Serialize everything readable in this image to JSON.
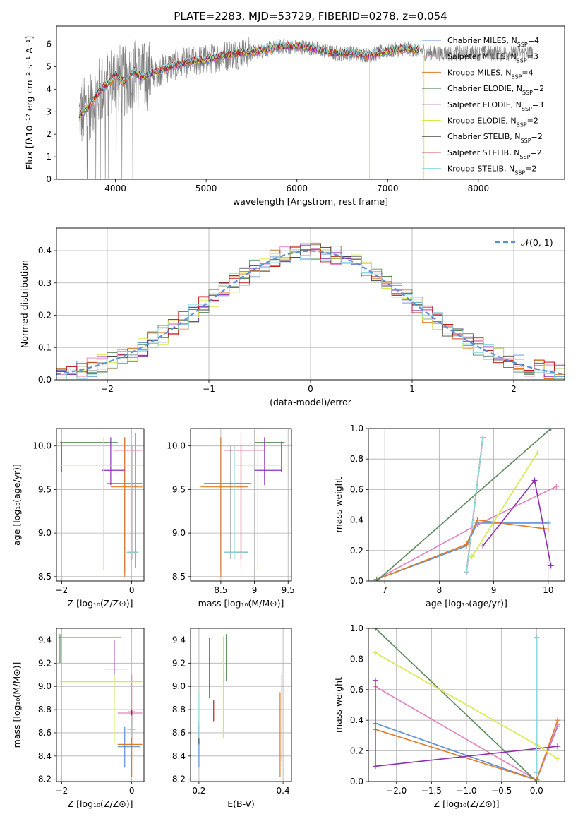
{
  "figure_title": "PLATE=2283, MJD=53729, FIBERID=0278, z=0.054",
  "colors": {
    "chabrier_miles": "#5b8fd6",
    "salpeter_miles": "#e57fbf",
    "kroupa_miles": "#e07b25",
    "chabrier_elodie": "#5a8a5e",
    "salpeter_elodie": "#8e2fb0",
    "kroupa_elodie": "#d6ea4a",
    "chabrier_stelib": "#4a4a4a",
    "salpeter_stelib": "#c41a1a",
    "kroupa_stelib": "#8fd8e0",
    "data": "#808080",
    "normal": "#5b8fd6",
    "grid": "#b0b0b0"
  },
  "legend": [
    {
      "label": "Chabrier MILES, N",
      "sub": "SSP",
      "n": "=4",
      "color": "#5b8fd6"
    },
    {
      "label": "Salpeter MILES, N",
      "sub": "SSP",
      "n": "=3",
      "color": "#e57fbf"
    },
    {
      "label": "Kroupa MILES, N",
      "sub": "SSP",
      "n": "=4",
      "color": "#e07b25"
    },
    {
      "label": "Chabrier ELODIE, N",
      "sub": "SSP",
      "n": "=2",
      "color": "#5a8a5e"
    },
    {
      "label": "Salpeter ELODIE, N",
      "sub": "SSP",
      "n": "=3",
      "color": "#8e2fb0"
    },
    {
      "label": "Kroupa ELODIE, N",
      "sub": "SSP",
      "n": "=2",
      "color": "#d6ea4a"
    },
    {
      "label": "Chabrier STELIB, N",
      "sub": "SSP",
      "n": "=2",
      "color": "#4a4a4a"
    },
    {
      "label": "Salpeter STELIB, N",
      "sub": "SSP",
      "n": "=2",
      "color": "#c41a1a"
    },
    {
      "label": "Kroupa STELIB, N",
      "sub": "SSP",
      "n": "=2",
      "color": "#8fd8e0"
    }
  ],
  "chart_data": [
    {
      "id": "spectrum",
      "type": "line",
      "xlabel": "wavelength [Angstrom, rest frame]",
      "ylabel": "Flux [fλ10⁻¹⁷ erg cm⁻² s⁻¹ A⁻¹]",
      "xlim": [
        3350,
        8950
      ],
      "ylim": [
        0,
        6.8
      ],
      "xticks": [
        4000,
        5000,
        6000,
        7000,
        8000
      ],
      "yticks": [
        0,
        1,
        2,
        3,
        4,
        5,
        6
      ],
      "continuum": {
        "x": [
          3600,
          3700,
          3800,
          3900,
          4000,
          4100,
          4200,
          4300,
          4400,
          4600,
          4800,
          5000,
          5200,
          5400,
          5600,
          5800,
          6000,
          6200,
          6400,
          6600,
          6800,
          7000,
          7200,
          7400
        ],
        "y": [
          2.8,
          3.2,
          3.8,
          4.2,
          4.6,
          4.3,
          4.8,
          4.5,
          4.7,
          5.0,
          5.2,
          5.3,
          5.5,
          5.6,
          5.7,
          5.9,
          5.9,
          5.8,
          5.6,
          5.6,
          5.5,
          5.7,
          5.8,
          5.7
        ]
      },
      "model_end": 7350,
      "data_range": [
        3600,
        8600
      ]
    },
    {
      "id": "residuals",
      "type": "histogram",
      "xlabel": "(data-model)/error",
      "ylabel": "Normed distribution",
      "xlim": [
        -2.5,
        2.5
      ],
      "ylim": [
        0,
        0.47
      ],
      "xticks": [
        -2,
        -1,
        0,
        1,
        2
      ],
      "yticks": [
        0.0,
        0.1,
        0.2,
        0.3,
        0.4
      ],
      "bin_edges_start": -2.5,
      "bin_width": 0.1,
      "nbins": 50,
      "normal_label": "𝒩(0, 1)"
    },
    {
      "id": "age_vs_Z",
      "type": "errorbar",
      "xlabel": "Z [log₁₀(Z/Z⊙)]",
      "ylabel": "age  [log₁₀(age/yr)]",
      "xlim": [
        -2.15,
        0.35
      ],
      "ylim": [
        8.45,
        10.2
      ],
      "xticks": [
        -2,
        0
      ],
      "yticks": [
        8.5,
        9.0,
        9.5,
        10.0
      ],
      "points": [
        {
          "m": "chabrier_miles",
          "x": -0.2,
          "xe": [
            -0.7,
            0.3
          ],
          "y": 9.57,
          "ye": [
            8.55,
            10.1
          ]
        },
        {
          "m": "salpeter_miles",
          "x": 0.1,
          "xe": [
            -0.5,
            0.3
          ],
          "y": 9.95,
          "ye": [
            8.6,
            10.15
          ]
        },
        {
          "m": "kroupa_miles",
          "x": -0.2,
          "xe": [
            -0.6,
            0.3
          ],
          "y": 9.53,
          "ye": [
            8.5,
            10.1
          ]
        },
        {
          "m": "chabrier_elodie",
          "x": -2.0,
          "xe": [
            -2.05,
            -0.4
          ],
          "y": 10.04,
          "ye": [
            9.7,
            10.05
          ]
        },
        {
          "m": "salpeter_elodie",
          "x": -0.6,
          "xe": [
            -0.85,
            -0.2
          ],
          "y": 9.72,
          "ye": [
            9.55,
            10.1
          ]
        },
        {
          "m": "kroupa_elodie",
          "x": -0.8,
          "xe": [
            -2.05,
            0.4
          ],
          "y": 9.78,
          "ye": [
            8.58,
            10.1
          ]
        },
        {
          "m": "chabrier_stelib",
          "x": 0.0,
          "xe": [
            -0.1,
            0.15
          ],
          "y": 8.78,
          "ye": [
            8.7,
            10.0
          ]
        },
        {
          "m": "salpeter_stelib",
          "x": 0.0,
          "xe": [
            -0.1,
            0.15
          ],
          "y": 8.78,
          "ye": [
            8.7,
            10.0
          ]
        },
        {
          "m": "kroupa_stelib",
          "x": 0.0,
          "xe": [
            -0.15,
            0.2
          ],
          "y": 8.78,
          "ye": [
            8.7,
            10.0
          ]
        }
      ]
    },
    {
      "id": "age_vs_mass",
      "type": "errorbar",
      "xlabel": "mass [log₁₀(M/M⊙)]",
      "ylabel": "",
      "xlim": [
        8.05,
        9.55
      ],
      "ylim": [
        8.45,
        10.2
      ],
      "xticks": [
        8.5,
        9.0,
        9.5
      ],
      "yticks": [
        8.5,
        9.0,
        9.5,
        10.0
      ],
      "points": [
        {
          "m": "chabrier_miles",
          "x": 8.5,
          "xe": [
            8.25,
            8.95
          ],
          "y": 9.57,
          "ye": [
            8.55,
            10.1
          ]
        },
        {
          "m": "salpeter_miles",
          "x": 8.8,
          "xe": [
            8.55,
            9.15
          ],
          "y": 9.95,
          "ye": [
            8.6,
            10.15
          ]
        },
        {
          "m": "kroupa_miles",
          "x": 8.5,
          "xe": [
            8.2,
            8.9
          ],
          "y": 9.53,
          "ye": [
            8.5,
            10.1
          ]
        },
        {
          "m": "chabrier_elodie",
          "x": 9.4,
          "xe": [
            9.0,
            9.45
          ],
          "y": 10.04,
          "ye": [
            9.7,
            10.05
          ]
        },
        {
          "m": "salpeter_elodie",
          "x": 9.15,
          "xe": [
            9.0,
            9.4
          ],
          "y": 9.72,
          "ye": [
            9.55,
            10.1
          ]
        },
        {
          "m": "kroupa_elodie",
          "x": 9.05,
          "xe": [
            8.7,
            9.4
          ],
          "y": 9.78,
          "ye": [
            8.58,
            10.1
          ]
        },
        {
          "m": "chabrier_stelib",
          "x": 8.65,
          "xe": [
            8.55,
            8.9
          ],
          "y": 8.78,
          "ye": [
            8.7,
            10.0
          ]
        },
        {
          "m": "salpeter_stelib",
          "x": 8.8,
          "xe": [
            8.7,
            8.9
          ],
          "y": 8.78,
          "ye": [
            8.7,
            10.0
          ]
        },
        {
          "m": "kroupa_stelib",
          "x": 8.7,
          "xe": [
            8.55,
            8.9
          ],
          "y": 8.78,
          "ye": [
            8.7,
            10.0
          ]
        }
      ]
    },
    {
      "id": "mass_weight_vs_age",
      "type": "line",
      "xlabel": "age  [log₁₀(age/yr)]",
      "ylabel": "mass weight",
      "xlim": [
        6.7,
        10.3
      ],
      "ylim": [
        0,
        1.0
      ],
      "xticks": [
        7,
        8,
        9,
        10
      ],
      "yticks": [
        0.0,
        0.2,
        0.4,
        0.6,
        0.8,
        1.0
      ],
      "series": [
        {
          "m": "chabrier_miles",
          "x": [
            6.85,
            8.5,
            8.7,
            10.0
          ],
          "y": [
            0.01,
            0.23,
            0.38,
            0.38
          ]
        },
        {
          "m": "salpeter_miles",
          "x": [
            6.85,
            8.7,
            10.15
          ],
          "y": [
            0.01,
            0.37,
            0.62
          ]
        },
        {
          "m": "kroupa_miles",
          "x": [
            6.85,
            8.5,
            8.7,
            10.0
          ],
          "y": [
            0.01,
            0.24,
            0.4,
            0.34
          ]
        },
        {
          "m": "chabrier_elodie",
          "x": [
            6.85,
            10.05
          ],
          "y": [
            0.0,
            1.0
          ]
        },
        {
          "m": "salpeter_elodie",
          "x": [
            8.8,
            9.75,
            10.05
          ],
          "y": [
            0.23,
            0.66,
            0.1
          ]
        },
        {
          "m": "kroupa_elodie",
          "x": [
            8.6,
            9.8
          ],
          "y": [
            0.16,
            0.84
          ]
        },
        {
          "m": "chabrier_stelib",
          "x": [
            8.5,
            8.8
          ],
          "y": [
            0.06,
            0.94
          ]
        },
        {
          "m": "salpeter_stelib",
          "x": [
            8.5,
            8.8
          ],
          "y": [
            0.06,
            0.94
          ]
        },
        {
          "m": "kroupa_stelib",
          "x": [
            8.5,
            8.8
          ],
          "y": [
            0.06,
            0.94
          ]
        }
      ]
    },
    {
      "id": "mass_vs_Z",
      "type": "errorbar",
      "xlabel": "Z [log₁₀(Z/Z⊙)]",
      "ylabel": "mass [log₁₀(M/M⊙)]",
      "xlim": [
        -2.15,
        0.35
      ],
      "ylim": [
        8.18,
        9.5
      ],
      "xticks": [
        -2,
        0
      ],
      "yticks": [
        8.2,
        8.4,
        8.6,
        8.8,
        9.0,
        9.2,
        9.4
      ],
      "points": [
        {
          "m": "chabrier_miles",
          "x": -0.2,
          "xe": [
            -0.4,
            0.25
          ],
          "y": 8.48,
          "ye": [
            8.3,
            8.65
          ]
        },
        {
          "m": "salpeter_miles",
          "x": 0.0,
          "xe": [
            -0.4,
            0.3
          ],
          "y": 8.77,
          "ye": [
            8.5,
            9.1
          ]
        },
        {
          "m": "kroupa_miles",
          "x": 0.0,
          "xe": [
            -0.4,
            0.3
          ],
          "y": 8.5,
          "ye": [
            8.22,
            8.8
          ]
        },
        {
          "m": "chabrier_elodie",
          "x": -2.05,
          "xe": [
            -2.1,
            -0.3
          ],
          "y": 9.42,
          "ye": [
            9.2,
            9.45
          ]
        },
        {
          "m": "salpeter_elodie",
          "x": -0.5,
          "xe": [
            -0.8,
            -0.1
          ],
          "y": 9.15,
          "ye": [
            8.9,
            9.4
          ]
        },
        {
          "m": "kroupa_elodie",
          "x": -0.5,
          "xe": [
            -2.05,
            0.3
          ],
          "y": 9.04,
          "ye": [
            8.5,
            9.1
          ]
        },
        {
          "m": "chabrier_stelib",
          "x": 0.0,
          "xe": [
            -0.1,
            0.1
          ],
          "y": 8.63,
          "ye": [
            8.55,
            8.8
          ]
        },
        {
          "m": "salpeter_stelib",
          "x": 0.0,
          "xe": [
            -0.1,
            0.1
          ],
          "y": 8.78,
          "ye": [
            8.7,
            8.8
          ]
        },
        {
          "m": "kroupa_stelib",
          "x": 0.0,
          "xe": [
            -0.15,
            0.1
          ],
          "y": 8.63,
          "ye": [
            8.55,
            8.75
          ]
        }
      ]
    },
    {
      "id": "mass_vs_EBV",
      "type": "errorbar",
      "xlabel": "E(B-V)",
      "ylabel": "",
      "xlim": [
        0.18,
        0.42
      ],
      "ylim": [
        8.18,
        9.5
      ],
      "xticks": [
        0.2,
        0.4
      ],
      "yticks": [
        8.2,
        8.4,
        8.6,
        8.8,
        9.0,
        9.2,
        9.4
      ],
      "points": [
        {
          "m": "chabrier_miles",
          "x": 0.2,
          "y": 8.48,
          "ye": [
            8.3,
            8.65
          ]
        },
        {
          "m": "salpeter_miles",
          "x": 0.397,
          "y": 8.77,
          "ye": [
            8.35,
            9.1
          ]
        },
        {
          "m": "kroupa_miles",
          "x": 0.393,
          "y": 8.5,
          "ye": [
            8.22,
            8.95
          ]
        },
        {
          "m": "chabrier_elodie",
          "x": 0.265,
          "y": 9.42,
          "ye": [
            9.05,
            9.45
          ]
        },
        {
          "m": "salpeter_elodie",
          "x": 0.225,
          "y": 9.15,
          "ye": [
            8.9,
            9.42
          ]
        },
        {
          "m": "kroupa_elodie",
          "x": 0.258,
          "y": 9.04,
          "ye": [
            8.55,
            9.43
          ]
        },
        {
          "m": "chabrier_stelib",
          "x": 0.2,
          "y": 8.63,
          "ye": [
            8.5,
            8.7
          ]
        },
        {
          "m": "salpeter_stelib",
          "x": 0.235,
          "y": 8.78,
          "ye": [
            8.7,
            8.88
          ]
        },
        {
          "m": "kroupa_stelib",
          "x": 0.2,
          "y": 8.63,
          "ye": [
            8.55,
            8.95
          ]
        }
      ]
    },
    {
      "id": "mass_weight_vs_Z",
      "type": "line",
      "xlabel": "Z [log₁₀(Z/Z⊙)]",
      "ylabel": "mass weight",
      "xlim": [
        -2.4,
        0.4
      ],
      "ylim": [
        0,
        1.0
      ],
      "xticks": [
        -2.0,
        -1.5,
        -1.0,
        -0.5,
        0.0
      ],
      "yticks": [
        0.0,
        0.2,
        0.4,
        0.6,
        0.8,
        1.0
      ],
      "series": [
        {
          "m": "chabrier_miles",
          "x": [
            -2.3,
            0.0,
            0.3
          ],
          "y": [
            0.38,
            0.01,
            0.36
          ]
        },
        {
          "m": "salpeter_miles",
          "x": [
            -2.3,
            0.0,
            0.3
          ],
          "y": [
            0.62,
            0.01,
            0.37
          ]
        },
        {
          "m": "kroupa_miles",
          "x": [
            -2.3,
            0.0,
            0.3
          ],
          "y": [
            0.34,
            0.01,
            0.4
          ]
        },
        {
          "m": "chabrier_elodie",
          "x": [
            -2.3,
            0.0
          ],
          "y": [
            1.0,
            0.0
          ]
        },
        {
          "m": "salpeter_elodie",
          "x": [
            -2.3,
            -2.3,
            0.3
          ],
          "y": [
            0.66,
            0.1,
            0.23
          ]
        },
        {
          "m": "kroupa_elodie",
          "x": [
            -2.3,
            0.0,
            0.3
          ],
          "y": [
            0.84,
            0.24,
            0.15
          ]
        },
        {
          "m": "chabrier_stelib",
          "x": [
            0.0,
            0.0
          ],
          "y": [
            0.06,
            0.94
          ]
        },
        {
          "m": "salpeter_stelib",
          "x": [
            0.0,
            0.0
          ],
          "y": [
            0.06,
            0.94
          ]
        },
        {
          "m": "kroupa_stelib",
          "x": [
            0.0,
            0.0
          ],
          "y": [
            0.06,
            0.94
          ]
        }
      ]
    }
  ]
}
